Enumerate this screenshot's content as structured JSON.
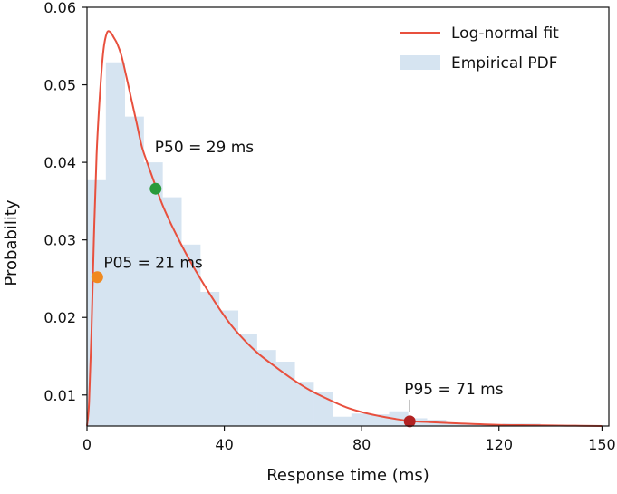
{
  "chart_data": {
    "type": "bar",
    "xlabel": "Response time (ms)",
    "ylabel": "Probability",
    "xlim": [
      0,
      152
    ],
    "ylim": [
      0.006,
      0.06
    ],
    "x_ticks": [
      {
        "value": 0,
        "label": "0"
      },
      {
        "value": 40,
        "label": "40"
      },
      {
        "value": 80,
        "label": "80"
      },
      {
        "value": 120,
        "label": "120"
      },
      {
        "value": 150,
        "label": "150"
      }
    ],
    "y_ticks": [
      {
        "value": 0.01,
        "label": "0.01"
      },
      {
        "value": 0.02,
        "label": "0.02"
      },
      {
        "value": 0.03,
        "label": "0.03"
      },
      {
        "value": 0.04,
        "label": "0.04"
      },
      {
        "value": 0.05,
        "label": "0.05"
      },
      {
        "value": 0.06,
        "label": "0.06"
      }
    ],
    "grid": false,
    "legend_position": "top-right",
    "legend": [
      {
        "label": "Log-normal fit",
        "kind": "line",
        "color": "#e8503e"
      },
      {
        "label": "Empirical PDF",
        "kind": "patch",
        "color": "#d6e4f1"
      }
    ],
    "series": [
      {
        "name": "Empirical PDF",
        "kind": "histogram",
        "color": "#d6e4f1",
        "bins": [
          {
            "x0": 0,
            "x1": 5.5,
            "value": 0.0377
          },
          {
            "x0": 5.5,
            "x1": 11,
            "value": 0.0529
          },
          {
            "x0": 11,
            "x1": 16.5,
            "value": 0.0459
          },
          {
            "x0": 16.5,
            "x1": 22,
            "value": 0.04
          },
          {
            "x0": 22,
            "x1": 27.5,
            "value": 0.0355
          },
          {
            "x0": 27.5,
            "x1": 33,
            "value": 0.0294
          },
          {
            "x0": 33,
            "x1": 38.5,
            "value": 0.0233
          },
          {
            "x0": 38.5,
            "x1": 44,
            "value": 0.0209
          },
          {
            "x0": 44,
            "x1": 49.5,
            "value": 0.0179
          },
          {
            "x0": 49.5,
            "x1": 55,
            "value": 0.0158
          },
          {
            "x0": 55,
            "x1": 60.5,
            "value": 0.0143
          },
          {
            "x0": 60.5,
            "x1": 66,
            "value": 0.0117
          },
          {
            "x0": 66,
            "x1": 71.5,
            "value": 0.0104
          },
          {
            "x0": 71.5,
            "x1": 77,
            "value": 0.0072
          },
          {
            "x0": 77,
            "x1": 82.5,
            "value": 0.0076
          },
          {
            "x0": 82.5,
            "x1": 88,
            "value": 0.0075
          },
          {
            "x0": 88,
            "x1": 93.5,
            "value": 0.0079
          },
          {
            "x0": 93.5,
            "x1": 99,
            "value": 0.007
          },
          {
            "x0": 99,
            "x1": 104.5,
            "value": 0.0068
          },
          {
            "x0": 104.5,
            "x1": 110,
            "value": 0.0063
          },
          {
            "x0": 110,
            "x1": 115.5,
            "value": 0.0062
          },
          {
            "x0": 115.5,
            "x1": 121,
            "value": 0.0061
          },
          {
            "x0": 121,
            "x1": 126.5,
            "value": 0.0063
          },
          {
            "x0": 126.5,
            "x1": 132,
            "value": 0.0063
          },
          {
            "x0": 132,
            "x1": 137.5,
            "value": 0.0061
          }
        ]
      },
      {
        "name": "Log-normal fit",
        "kind": "line",
        "color": "#e8503e",
        "x": [
          0,
          0.6,
          1.3,
          2,
          2.8,
          3.8,
          4.8,
          5.8,
          6.8,
          7.8,
          8.8,
          10,
          11.5,
          13,
          14.5,
          16,
          18,
          20,
          22,
          24,
          27,
          30,
          34,
          38,
          42,
          46,
          50,
          55,
          60,
          65,
          70,
          75,
          80,
          85,
          90,
          95,
          100,
          110,
          120,
          130,
          140,
          150
        ],
        "y": [
          0.006,
          0.009,
          0.018,
          0.03,
          0.041,
          0.049,
          0.0545,
          0.0567,
          0.0568,
          0.0561,
          0.0553,
          0.0538,
          0.051,
          0.048,
          0.045,
          0.042,
          0.0394,
          0.0369,
          0.0345,
          0.0325,
          0.0298,
          0.0273,
          0.0243,
          0.0215,
          0.019,
          0.017,
          0.0153,
          0.0136,
          0.012,
          0.0106,
          0.0095,
          0.0085,
          0.0078,
          0.0073,
          0.0069,
          0.0066,
          0.0065,
          0.0063,
          0.00615,
          0.0061,
          0.00605,
          0.006
        ]
      }
    ],
    "annotations": [
      {
        "label": "P05 = 21  ms",
        "x": 3,
        "y": 0.0252,
        "color": "#f0891f"
      },
      {
        "label": "P50 = 29 ms",
        "x": 20,
        "y": 0.0366,
        "color": "#2a9a3b"
      },
      {
        "label": "P95 = 71 ms",
        "x": 94,
        "y": 0.0066,
        "color": "#b22222"
      }
    ]
  }
}
